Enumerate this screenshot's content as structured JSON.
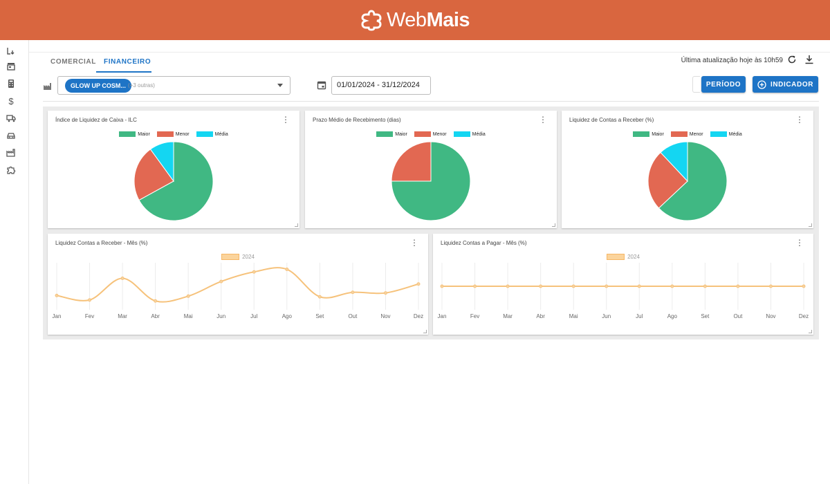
{
  "brand": {
    "name_light": "Web",
    "name_bold": "Mais"
  },
  "sidebar": {
    "icons": [
      "inbox-download-icon",
      "store-icon",
      "calculator-icon",
      "dollar-icon",
      "truck-icon",
      "car-icon",
      "factory-icon",
      "puzzle-icon"
    ]
  },
  "tabs": [
    {
      "label": "COMERCIAL"
    },
    {
      "label": "FINANCEIRO",
      "active": true
    }
  ],
  "header": {
    "last_update": "Última atualização hoje às 10h59"
  },
  "filters": {
    "company_chip": "GLOW UP COSM...",
    "company_more": "(+3 outras)",
    "date_range": "01/01/2024 - 31/12/2024"
  },
  "buttons": {
    "period": "PERÍODO",
    "indicator": "INDICADOR"
  },
  "colors": {
    "maior": "#40b883",
    "menor": "#e26852",
    "media": "#14d6f2",
    "line": "#f6c27b",
    "accent": "#1e74c6",
    "brand": "#d9663f"
  },
  "pie_legend": {
    "maior": "Maior",
    "menor": "Menor",
    "media": "Média"
  },
  "cards": {
    "ilc": {
      "title": "Índice de Liquidez de Caixa - ILC"
    },
    "pmr": {
      "title": "Prazo Médio de Recebimento (dias)"
    },
    "lcr": {
      "title": "Liquidez de Contas a Receber (%)"
    },
    "lcr_mes": {
      "title": "Liquidez Contas a Receber - Mês (%)"
    },
    "lcp_mes": {
      "title": "Liquidez Contas a Pagar - Mês (%)"
    }
  },
  "chart_data": [
    {
      "type": "pie",
      "labels": [
        "Maior",
        "Menor",
        "Média"
      ],
      "values": [
        67,
        23,
        10
      ]
    },
    {
      "type": "pie",
      "labels": [
        "Maior",
        "Menor",
        "Média"
      ],
      "values": [
        75,
        25,
        0
      ]
    },
    {
      "type": "pie",
      "labels": [
        "Maior",
        "Menor",
        "Média"
      ],
      "values": [
        63,
        25,
        12
      ]
    },
    {
      "type": "line",
      "categories": [
        "Jan",
        "Fev",
        "Mar",
        "Abr",
        "Mai",
        "Jun",
        "Jul",
        "Ago",
        "Set",
        "Out",
        "Nov",
        "Dez"
      ],
      "series": [
        {
          "name": "2024",
          "values": [
            36,
            22,
            90,
            19,
            34,
            80,
            110,
            118,
            32,
            46,
            44,
            72
          ]
        }
      ],
      "ylim": [
        0,
        130
      ]
    },
    {
      "type": "line",
      "categories": [
        "Jan",
        "Fev",
        "Mar",
        "Abr",
        "Mai",
        "Jun",
        "Jul",
        "Ago",
        "Set",
        "Out",
        "Nov",
        "Dez"
      ],
      "series": [
        {
          "name": "2024",
          "values": [
            50,
            50,
            50,
            50,
            50,
            50,
            50,
            50,
            50,
            50,
            50,
            50
          ]
        }
      ],
      "ylim": [
        0,
        100
      ]
    }
  ]
}
